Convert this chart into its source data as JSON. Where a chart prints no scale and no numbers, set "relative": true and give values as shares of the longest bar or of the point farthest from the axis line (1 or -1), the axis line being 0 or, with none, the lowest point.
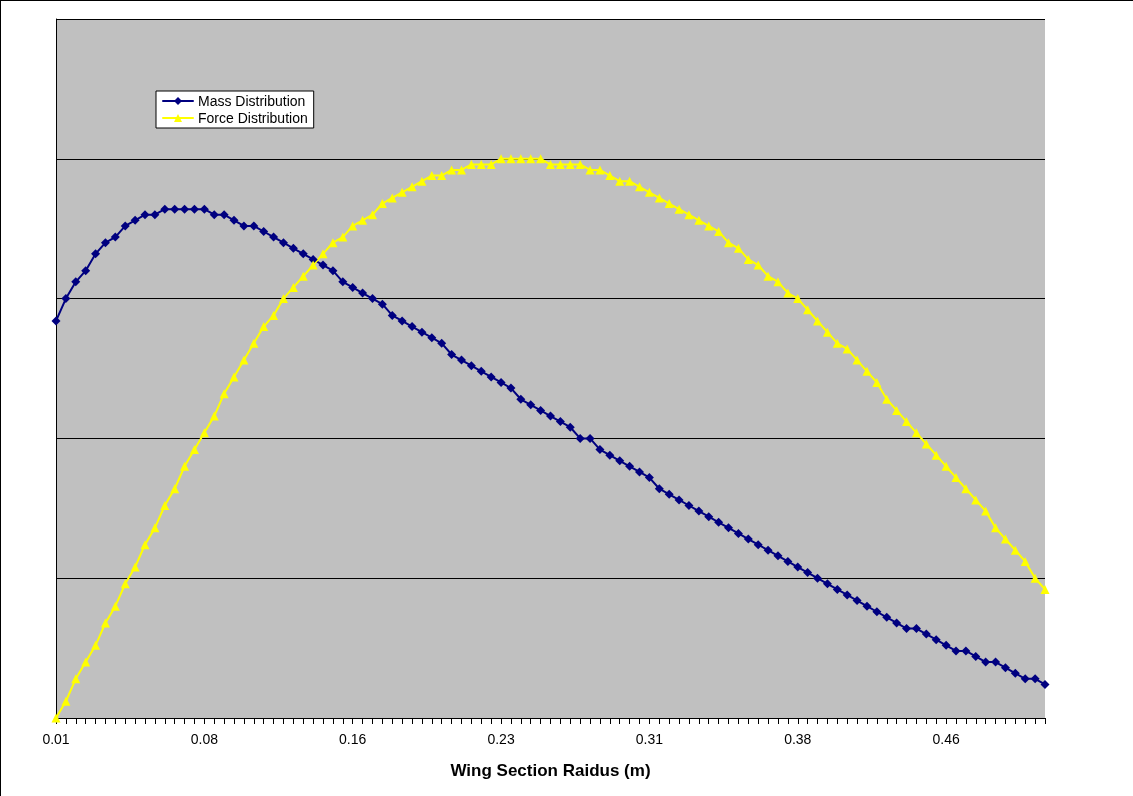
{
  "chart_data": {
    "type": "line",
    "relative": true,
    "xlabel": "Wing Section Raidus (m)",
    "grid": "y",
    "legend": "top left",
    "categories": [
      "0.01",
      null,
      null,
      null,
      null,
      null,
      null,
      null,
      null,
      null,
      null,
      null,
      null,
      null,
      null,
      "0.08",
      null,
      null,
      null,
      null,
      null,
      null,
      null,
      null,
      null,
      null,
      null,
      null,
      null,
      null,
      "0.16",
      null,
      null,
      null,
      null,
      null,
      null,
      null,
      null,
      null,
      null,
      null,
      null,
      null,
      null,
      "0.23",
      null,
      null,
      null,
      null,
      null,
      null,
      null,
      null,
      null,
      null,
      null,
      null,
      null,
      null,
      "0.31",
      null,
      null,
      null,
      null,
      null,
      null,
      null,
      null,
      null,
      null,
      null,
      null,
      null,
      null,
      "0.38",
      null,
      null,
      null,
      null,
      null,
      null,
      null,
      null,
      null,
      null,
      null,
      null,
      null,
      null,
      "0.46",
      null,
      null,
      null,
      null,
      null,
      null,
      null,
      null,
      null,
      null
    ],
    "series": [
      {
        "name": "Mass Distribution",
        "color": "#000080",
        "marker": "diamond",
        "values": [
          0.71,
          0.75,
          0.78,
          0.8,
          0.83,
          0.85,
          0.86,
          0.88,
          0.89,
          0.9,
          0.9,
          0.91,
          0.91,
          0.91,
          0.91,
          0.91,
          0.9,
          0.9,
          0.89,
          0.88,
          0.88,
          0.87,
          0.86,
          0.85,
          0.84,
          0.83,
          0.82,
          0.81,
          0.8,
          0.78,
          0.77,
          0.76,
          0.75,
          0.74,
          0.72,
          0.71,
          0.7,
          0.69,
          0.68,
          0.67,
          0.65,
          0.64,
          0.63,
          0.62,
          0.61,
          0.6,
          0.59,
          0.57,
          0.56,
          0.55,
          0.54,
          0.53,
          0.52,
          0.5,
          0.5,
          0.48,
          0.47,
          0.46,
          0.45,
          0.44,
          0.43,
          0.41,
          0.4,
          0.39,
          0.38,
          0.37,
          0.36,
          0.35,
          0.34,
          0.33,
          0.32,
          0.31,
          0.3,
          0.29,
          0.28,
          0.27,
          0.26,
          0.25,
          0.24,
          0.23,
          0.22,
          0.21,
          0.2,
          0.19,
          0.18,
          0.17,
          0.16,
          0.16,
          0.15,
          0.14,
          0.13,
          0.12,
          0.12,
          0.11,
          0.1,
          0.1,
          0.09,
          0.08,
          0.07,
          0.07,
          0.06
        ]
      },
      {
        "name": "Force Distribution",
        "color": "#ffff00",
        "marker": "triangle",
        "values": [
          0,
          0.03,
          0.07,
          0.1,
          0.13,
          0.17,
          0.2,
          0.24,
          0.27,
          0.31,
          0.34,
          0.38,
          0.41,
          0.45,
          0.48,
          0.51,
          0.54,
          0.58,
          0.61,
          0.64,
          0.67,
          0.7,
          0.72,
          0.75,
          0.77,
          0.79,
          0.81,
          0.83,
          0.85,
          0.86,
          0.88,
          0.89,
          0.9,
          0.92,
          0.93,
          0.94,
          0.95,
          0.96,
          0.97,
          0.97,
          0.98,
          0.98,
          0.99,
          0.99,
          0.99,
          1.0,
          1.0,
          1.0,
          1.0,
          1.0,
          0.99,
          0.99,
          0.99,
          0.99,
          0.98,
          0.98,
          0.97,
          0.96,
          0.96,
          0.95,
          0.94,
          0.93,
          0.92,
          0.91,
          0.9,
          0.89,
          0.88,
          0.87,
          0.85,
          0.84,
          0.82,
          0.81,
          0.79,
          0.78,
          0.76,
          0.75,
          0.73,
          0.71,
          0.69,
          0.67,
          0.66,
          0.64,
          0.62,
          0.6,
          0.57,
          0.55,
          0.53,
          0.51,
          0.49,
          0.47,
          0.45,
          0.43,
          0.41,
          0.39,
          0.37,
          0.34,
          0.32,
          0.3,
          0.28,
          0.25,
          0.23
        ]
      }
    ]
  }
}
